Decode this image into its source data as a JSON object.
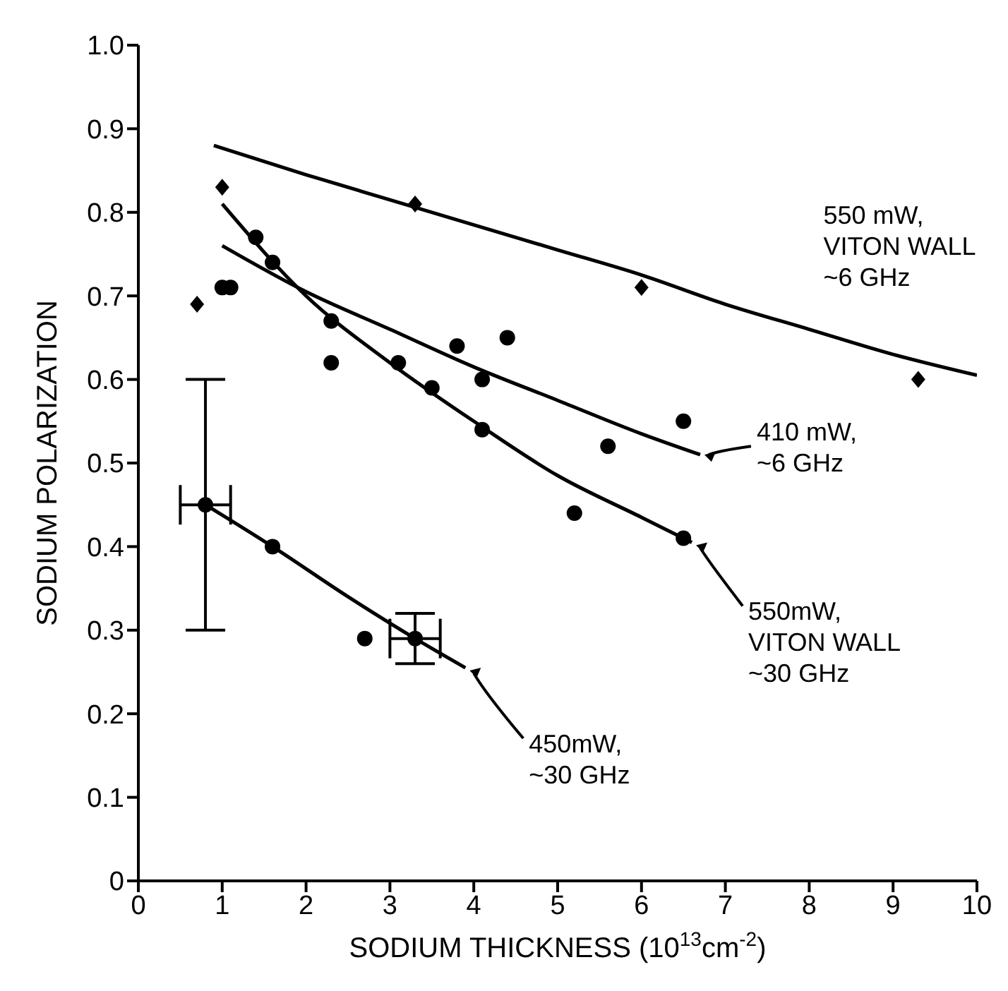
{
  "chart_data": {
    "type": "scatter",
    "xlabel": "SODIUM THICKNESS (10$^{13}$cm$^{-2}$)",
    "ylabel": "SODIUM POLARIZATION",
    "xlim": [
      0,
      10
    ],
    "xticks": [
      0,
      1,
      2,
      3,
      4,
      5,
      6,
      7,
      8,
      9,
      10
    ],
    "ylim": [
      0,
      1
    ],
    "yticks": [
      0,
      {
        "value": 0.1,
        "label": "0.1"
      },
      {
        "value": 0.2,
        "label": "0.2"
      },
      {
        "value": 0.3,
        "label": "0.3"
      },
      {
        "value": 0.4,
        "label": "0.4"
      },
      {
        "value": 0.5,
        "label": "0.5"
      },
      {
        "value": 0.6,
        "label": "0.6"
      },
      {
        "value": 0.7,
        "label": "0.7"
      },
      {
        "value": 0.8,
        "label": "0.8"
      },
      {
        "value": 0.9,
        "label": "0.9"
      },
      {
        "value": 1,
        "label": "1.0"
      }
    ],
    "grid": false,
    "legend": false,
    "series": [
      {
        "marker": "diamond",
        "color": "#000000",
        "x": [
          0.7,
          1.0,
          3.3,
          6.0,
          9.3
        ],
        "values": [
          0.69,
          0.83,
          0.81,
          0.71,
          0.6
        ]
      },
      {
        "marker": "circle",
        "color": "#000000",
        "x": [
          1.0,
          1.1,
          1.4,
          2.3,
          3.5,
          3.8,
          4.1,
          4.4,
          5.6,
          6.5
        ],
        "values": [
          0.71,
          0.71,
          0.77,
          0.62,
          0.59,
          0.64,
          0.6,
          0.65,
          0.52,
          0.55
        ]
      },
      {
        "marker": "circle",
        "color": "#000000",
        "x": [
          1.6,
          2.3,
          3.1,
          4.1,
          5.2,
          6.5
        ],
        "values": [
          0.74,
          0.67,
          0.62,
          0.54,
          0.44,
          0.41
        ]
      },
      {
        "marker": "circle",
        "color": "#000000",
        "x": [
          0.8,
          1.6,
          2.7,
          3.3
        ],
        "values": [
          0.45,
          0.4,
          0.29,
          0.29
        ],
        "errors": [
          [
            0.3,
            0.6
          ],
          null,
          null,
          [
            0.26,
            0.32
          ]
        ],
        "xerrors": [
          0.3,
          null,
          null,
          0.3
        ]
      },
      {
        "type": "line",
        "marker": "none",
        "color": "#000000",
        "x": [
          0.9,
          2,
          3,
          4,
          5,
          6,
          7,
          8,
          9,
          10
        ],
        "values": [
          0.88,
          0.845,
          0.815,
          0.785,
          0.755,
          0.725,
          0.69,
          0.66,
          0.63,
          0.605
        ]
      },
      {
        "type": "line",
        "marker": "none",
        "color": "#000000",
        "x": [
          1,
          2,
          3,
          4,
          5,
          6,
          6.7
        ],
        "values": [
          0.76,
          0.705,
          0.66,
          0.615,
          0.575,
          0.535,
          0.51
        ]
      },
      {
        "type": "line",
        "marker": "none",
        "color": "#000000",
        "x": [
          1,
          2,
          3,
          4,
          5,
          6,
          6.6
        ],
        "values": [
          0.81,
          0.7,
          0.62,
          0.55,
          0.485,
          0.435,
          0.405
        ]
      },
      {
        "type": "line",
        "marker": "none",
        "color": "#000000",
        "x": [
          0.8,
          1.6,
          2.5,
          3.3,
          3.9
        ],
        "values": [
          0.45,
          0.4,
          0.34,
          0.29,
          0.255
        ]
      }
    ],
    "annotations": [
      {
        "text": "550 mW,\nVITON WALL\n~6 GHz",
        "x": 8,
        "y": 0.66
      },
      {
        "text": "410 mW,\n~6 GHz",
        "x": 6.7,
        "y": 0.51
      },
      {
        "text": "550mW,\nVITON WALL\n~30 GHz",
        "x": 6.6,
        "y": 0.405
      },
      {
        "text": "450mW,\n~30 GHz",
        "x": 3.9,
        "y": 0.255
      }
    ]
  }
}
